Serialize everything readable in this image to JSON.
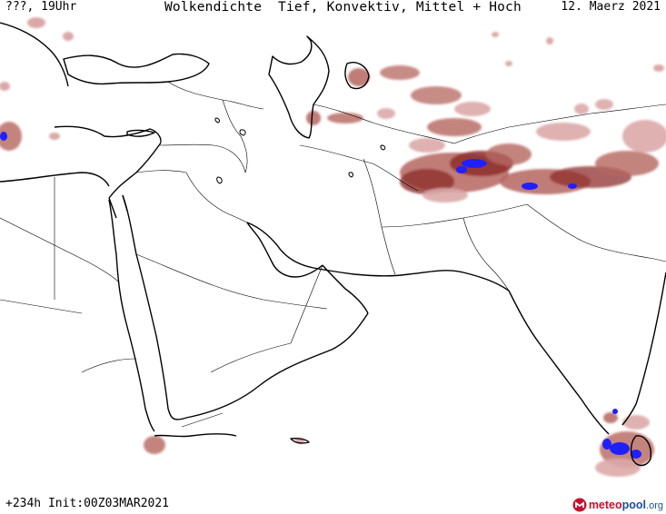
{
  "header": {
    "left_text": "???, 19Uhr",
    "title": "Wolkendichte  Tief, Konvektiv, Mittel + Hoch",
    "date": "12. Maerz 2021"
  },
  "footer": {
    "init_text": "+234h Init:00Z03MAR2021",
    "logo_part1": "meteo",
    "logo_part2": "pool",
    "logo_part3": ".org"
  },
  "colors": {
    "coast": "#000000",
    "border": "#000000",
    "cloud_light": "#dba8a8",
    "cloud_mid": "#b5655f",
    "cloud_dense": "#8e2f2c",
    "convective": "#2020ff",
    "logo_red": "#c8102e",
    "logo_blue": "#1a4f9c"
  },
  "legend_note": ""
}
